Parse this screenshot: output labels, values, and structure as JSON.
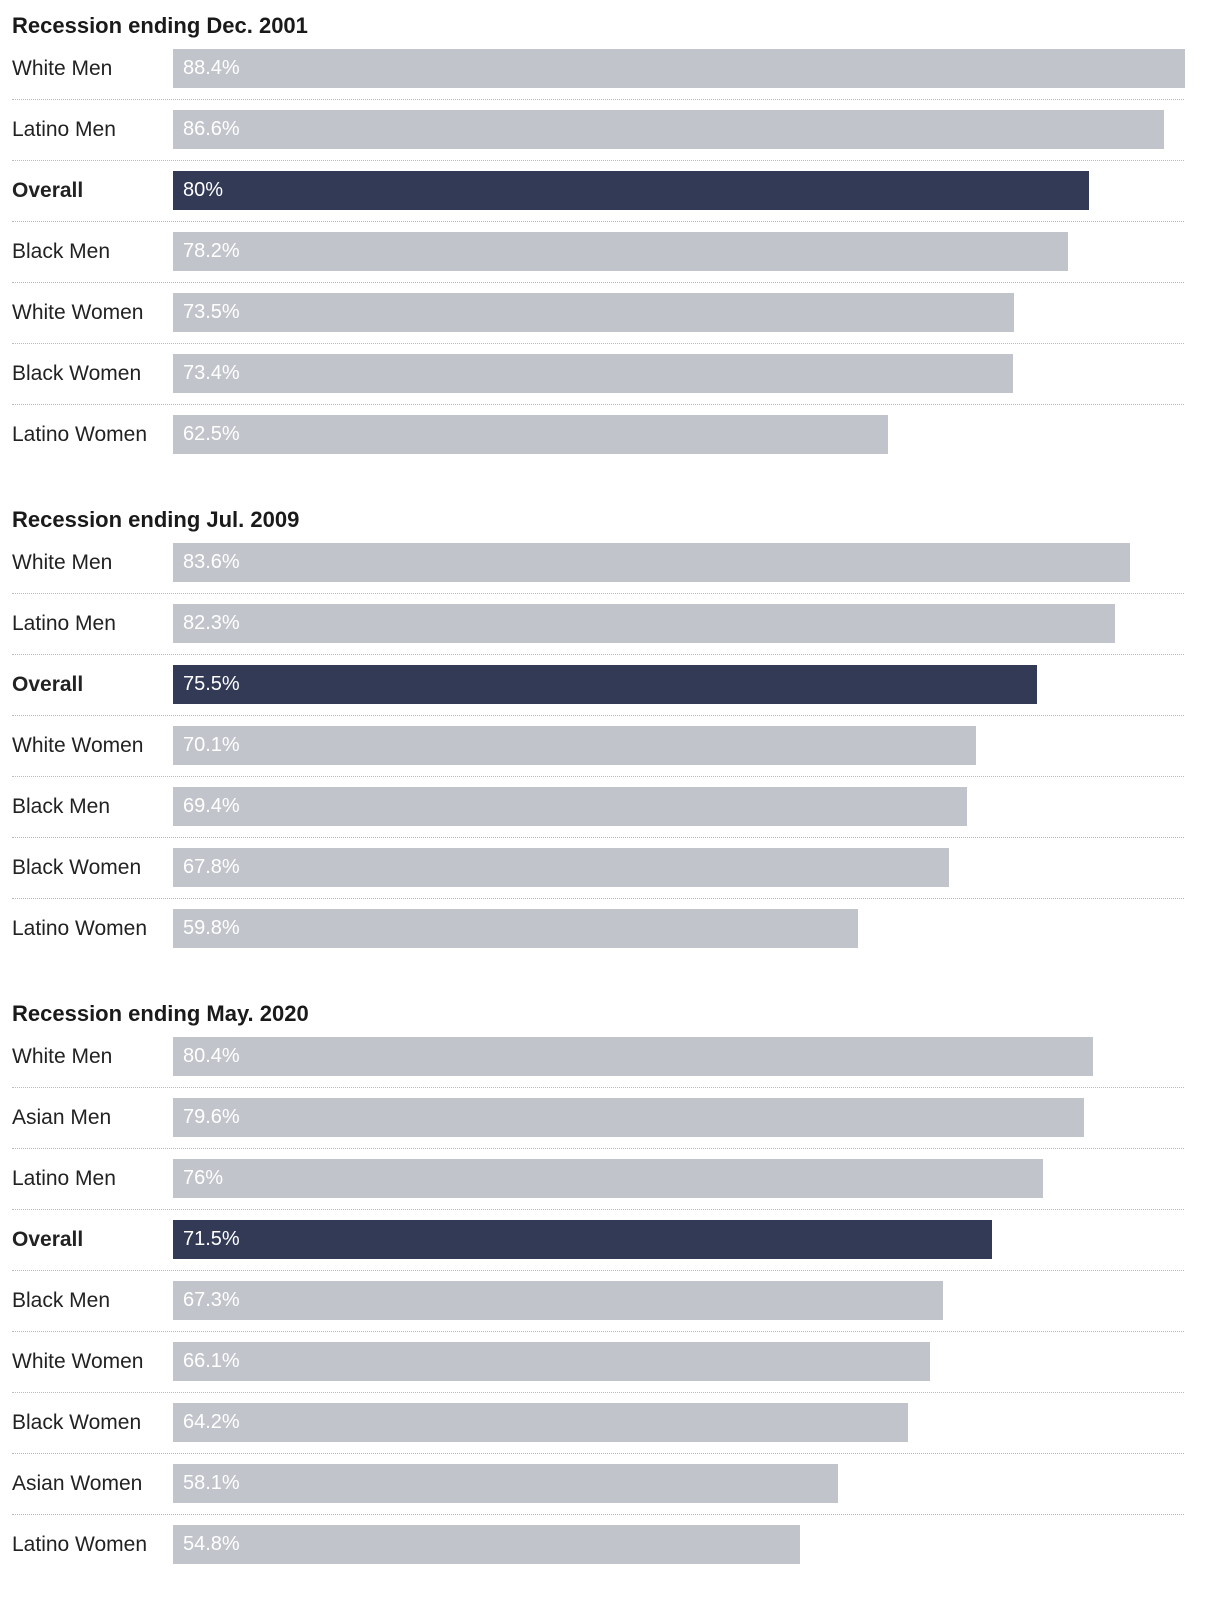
{
  "chart_data": {
    "type": "bar",
    "orientation": "horizontal",
    "xlim": [
      0,
      88.4
    ],
    "grid": false,
    "legend": "none",
    "colors": {
      "default_bar": "#c2c4cb",
      "highlight_bar": "#323a56",
      "value_text": "#ffffff"
    },
    "groups": [
      {
        "title": "Recession ending Dec. 2001",
        "rows": [
          {
            "category": "White Men",
            "value": 88.4,
            "label": "88.4%",
            "highlight": false
          },
          {
            "category": "Latino Men",
            "value": 86.6,
            "label": "86.6%",
            "highlight": false
          },
          {
            "category": "Overall",
            "value": 80,
            "label": "80%",
            "highlight": true
          },
          {
            "category": "Black Men",
            "value": 78.2,
            "label": "78.2%",
            "highlight": false
          },
          {
            "category": "White Women",
            "value": 73.5,
            "label": "73.5%",
            "highlight": false
          },
          {
            "category": "Black Women",
            "value": 73.4,
            "label": "73.4%",
            "highlight": false
          },
          {
            "category": "Latino Women",
            "value": 62.5,
            "label": "62.5%",
            "highlight": false
          }
        ]
      },
      {
        "title": "Recession ending Jul. 2009",
        "rows": [
          {
            "category": "White Men",
            "value": 83.6,
            "label": "83.6%",
            "highlight": false
          },
          {
            "category": "Latino Men",
            "value": 82.3,
            "label": "82.3%",
            "highlight": false
          },
          {
            "category": "Overall",
            "value": 75.5,
            "label": "75.5%",
            "highlight": true
          },
          {
            "category": "White Women",
            "value": 70.1,
            "label": "70.1%",
            "highlight": false
          },
          {
            "category": "Black Men",
            "value": 69.4,
            "label": "69.4%",
            "highlight": false
          },
          {
            "category": "Black Women",
            "value": 67.8,
            "label": "67.8%",
            "highlight": false
          },
          {
            "category": "Latino Women",
            "value": 59.8,
            "label": "59.8%",
            "highlight": false
          }
        ]
      },
      {
        "title": "Recession ending May. 2020",
        "rows": [
          {
            "category": "White Men",
            "value": 80.4,
            "label": "80.4%",
            "highlight": false
          },
          {
            "category": "Asian Men",
            "value": 79.6,
            "label": "79.6%",
            "highlight": false
          },
          {
            "category": "Latino Men",
            "value": 76,
            "label": "76%",
            "highlight": false
          },
          {
            "category": "Overall",
            "value": 71.5,
            "label": "71.5%",
            "highlight": true
          },
          {
            "category": "Black Men",
            "value": 67.3,
            "label": "67.3%",
            "highlight": false
          },
          {
            "category": "White Women",
            "value": 66.1,
            "label": "66.1%",
            "highlight": false
          },
          {
            "category": "Black Women",
            "value": 64.2,
            "label": "64.2%",
            "highlight": false
          },
          {
            "category": "Asian Women",
            "value": 58.1,
            "label": "58.1%",
            "highlight": false
          },
          {
            "category": "Latino Women",
            "value": 54.8,
            "label": "54.8%",
            "highlight": false
          }
        ]
      }
    ]
  }
}
